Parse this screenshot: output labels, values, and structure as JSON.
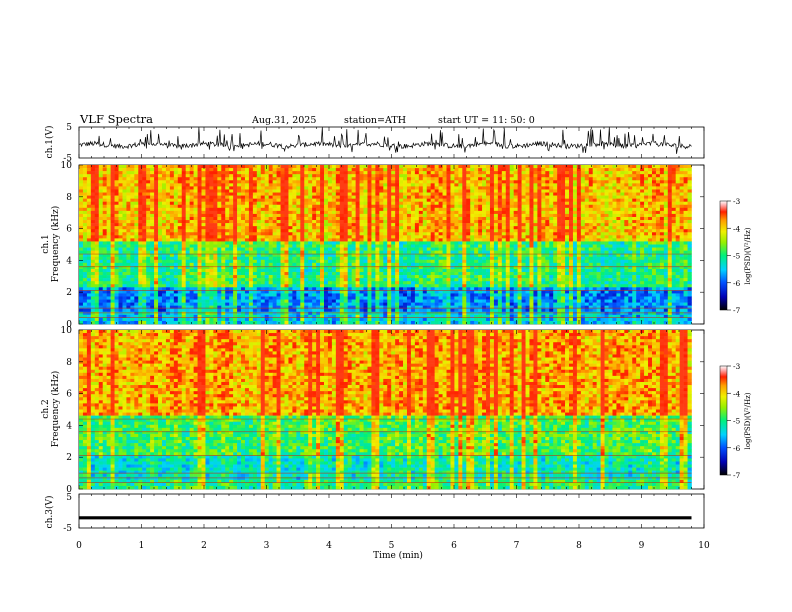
{
  "header": {
    "title": "VLF  Spectra",
    "date": "Aug.31, 2025",
    "station": "station=ATH",
    "start": "start  UT  =    11: 50: 0"
  },
  "chart_data": [
    {
      "type": "line",
      "name": "ch1-waveform",
      "ylabel": "ch.1(V)",
      "ylim": [
        -5,
        5
      ],
      "yticks": [
        "5",
        "-5"
      ],
      "xlim": [
        0,
        10
      ],
      "description_level": "noisy waveform around -0.8 V with spikes up to +5 V",
      "x_end": 9.8
    },
    {
      "type": "heatmap",
      "name": "ch1-spectrogram",
      "ylabel_top": "ch.1",
      "ylabel": "Frequency  (kHz)",
      "ylim": [
        0,
        10
      ],
      "yticks": [
        "0",
        "2",
        "4",
        "6",
        "8",
        "10"
      ],
      "xlim": [
        0,
        10
      ],
      "x_end": 9.8,
      "colorbar": {
        "label": "log(PSD)(V²/Hz)",
        "range": [
          -7,
          -3
        ],
        "ticks": [
          "-3",
          "-4",
          "-5",
          "-6",
          "-7"
        ]
      },
      "bands": [
        {
          "fmin": 0,
          "fmax": 0.8,
          "level": -5.5
        },
        {
          "fmin": 0.8,
          "fmax": 2.4,
          "level": -5.8
        },
        {
          "fmin": 2.4,
          "fmax": 5.2,
          "level": -5.0
        },
        {
          "fmin": 5.2,
          "fmax": 10,
          "level": -3.9
        }
      ]
    },
    {
      "type": "heatmap",
      "name": "ch2-spectrogram",
      "ylabel_top": "ch.2",
      "ylabel": "Frequency  (kHz)",
      "ylim": [
        0,
        10
      ],
      "yticks": [
        "0",
        "2",
        "4",
        "6",
        "8",
        "10"
      ],
      "xlim": [
        0,
        10
      ],
      "x_end": 9.8,
      "colorbar": {
        "label": "log(PSD)(V²/Hz)",
        "range": [
          -7,
          -3
        ],
        "ticks": [
          "-3",
          "-4",
          "-5",
          "-6",
          "-7"
        ]
      },
      "bands": [
        {
          "fmin": 0,
          "fmax": 0.6,
          "level": -5.0
        },
        {
          "fmin": 0.6,
          "fmax": 2.2,
          "level": -5.2
        },
        {
          "fmin": 2.2,
          "fmax": 4.6,
          "level": -4.8
        },
        {
          "fmin": 4.6,
          "fmax": 10,
          "level": -3.8
        }
      ]
    },
    {
      "type": "line",
      "name": "ch3-waveform",
      "ylabel": "ch.3(V)",
      "ylim": [
        -5,
        5
      ],
      "yticks": [
        "5",
        "-5"
      ],
      "xlim": [
        0,
        10
      ],
      "xlabel": "Time  (min)",
      "xticks": [
        "0",
        "1",
        "2",
        "3",
        "4",
        "5",
        "6",
        "7",
        "8",
        "9",
        "10"
      ],
      "level": -2.0,
      "x_end": 9.8
    }
  ]
}
